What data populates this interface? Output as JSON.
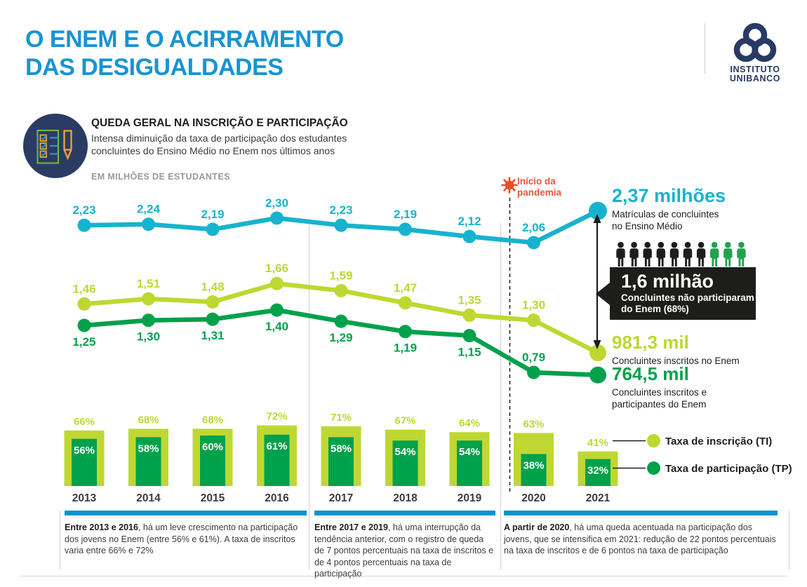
{
  "header": {
    "title_line1": "O ENEM E O ACIRRAMENTO",
    "title_line2": "DAS DESIGUALDADES",
    "logo_line1": "INSTITUTO",
    "logo_line2": "UNIBANCO"
  },
  "intro": {
    "heading": "QUEDA GERAL NA INSCRIÇÃO E PARTICIPAÇÃO",
    "desc_line1": "Intensa diminuição da taxa de participação dos estudantes",
    "desc_line2": "concluintes do Ensino Médio no Enem nos últimos anos",
    "unit_label": "EM MILHÕES DE ESTUDANTES"
  },
  "pandemic": {
    "line1": "Início da",
    "line2": "pandemia"
  },
  "annotations": {
    "enrolled": {
      "value": "2,37 milhões",
      "desc_line1": "Matrículas de concluintes",
      "desc_line2": "no Ensino Médio"
    },
    "not_participated": {
      "value": "1,6 milhão",
      "desc_line1": "Concluintes não participaram",
      "desc_line2": "do Enem (68%)"
    },
    "inscribed": {
      "value": "981,3 mil",
      "desc_line1": "Concluintes inscritos no Enem"
    },
    "participants": {
      "value": "764,5 mil",
      "desc_line1": "Concluintes inscritos e",
      "desc_line2": "participantes do Enem"
    }
  },
  "legend": {
    "items": [
      {
        "label": "Taxa de inscrição (TI)",
        "color": "#BFD732"
      },
      {
        "label": "Taxa de participação (TP)",
        "color": "#00A14B"
      }
    ]
  },
  "footnotes": [
    {
      "lead": "Entre 2013 e 2016",
      "rest": ", há um leve crescimento na participação dos jovens no Enem (entre 56% e 61%). A taxa de inscritos varia entre 66% e 72%"
    },
    {
      "lead": "Entre 2017 e 2019",
      "rest": ", há uma interrupção da tendência anterior, com o registro de queda de 7 pontos percentuais na taxa de inscritos e de 4 pontos percentuais na taxa de participação"
    },
    {
      "lead": "A partir de 2020",
      "rest": ", há uma queda acentuada na participação dos jovens, que se intensifica em 2021: redução de 22 pontos percentuais na taxa de inscritos e de 6 pontos na taxa de participação"
    }
  ],
  "colors": {
    "title_blue": "#1794D3",
    "navy": "#283A64",
    "cyan": "#17B3CE",
    "lime": "#BFD732",
    "green": "#00A14B",
    "people_green": "#22A24F",
    "virus_orange": "#E54E26",
    "pandemic_text": "#E8543B",
    "black": "#1D1D1B",
    "body_text": "#3C3C3B",
    "gray_label": "#9A9A9A",
    "divider": "#CFCFCF",
    "footnote_bar_blue": "#0D93D2"
  },
  "chart_data": {
    "type": "line+bar",
    "title": "O Enem e o acirramento das desigualdades",
    "unit": "em milhões de estudantes",
    "years": [
      "2013",
      "2014",
      "2015",
      "2016",
      "2017",
      "2018",
      "2019",
      "2020",
      "2021"
    ],
    "line_series": [
      {
        "name": "Matrículas de concluintes no Ensino Médio",
        "color": "#17B3CE",
        "values": [
          2.23,
          2.24,
          2.19,
          2.3,
          2.23,
          2.19,
          2.12,
          2.06,
          2.37
        ],
        "labels": [
          "2,23",
          "2,24",
          "2,19",
          "2,30",
          "2,23",
          "2,19",
          "2,12",
          "2,06",
          ""
        ]
      },
      {
        "name": "Concluintes inscritos no Enem",
        "color": "#BFD732",
        "values": [
          1.46,
          1.51,
          1.48,
          1.66,
          1.59,
          1.47,
          1.35,
          1.3,
          0.9813
        ],
        "labels": [
          "1,46",
          "1,51",
          "1,48",
          "1,66",
          "1,59",
          "1,47",
          "1,35",
          "1,30",
          ""
        ]
      },
      {
        "name": "Concluintes inscritos e participantes do Enem",
        "color": "#00A14B",
        "values": [
          1.25,
          1.3,
          1.31,
          1.4,
          1.29,
          1.19,
          1.15,
          0.79,
          0.7645
        ],
        "labels": [
          "1,25",
          "1,30",
          "1,31",
          "1,40",
          "1,29",
          "1,19",
          "1,15",
          "0,79",
          ""
        ]
      }
    ],
    "bar_series": [
      {
        "name": "Taxa de inscrição (TI)",
        "color": "#BFD732",
        "values": [
          66,
          68,
          68,
          72,
          71,
          67,
          64,
          63,
          41
        ]
      },
      {
        "name": "Taxa de participação (TP)",
        "color": "#00A14B",
        "values": [
          56,
          58,
          60,
          61,
          58,
          54,
          54,
          38,
          32
        ]
      }
    ],
    "pandemic_marker": {
      "label": "Início da pandemia",
      "between": [
        "2019",
        "2020"
      ]
    },
    "people_pictogram": {
      "total": 10,
      "black": 7,
      "green": 3
    }
  }
}
